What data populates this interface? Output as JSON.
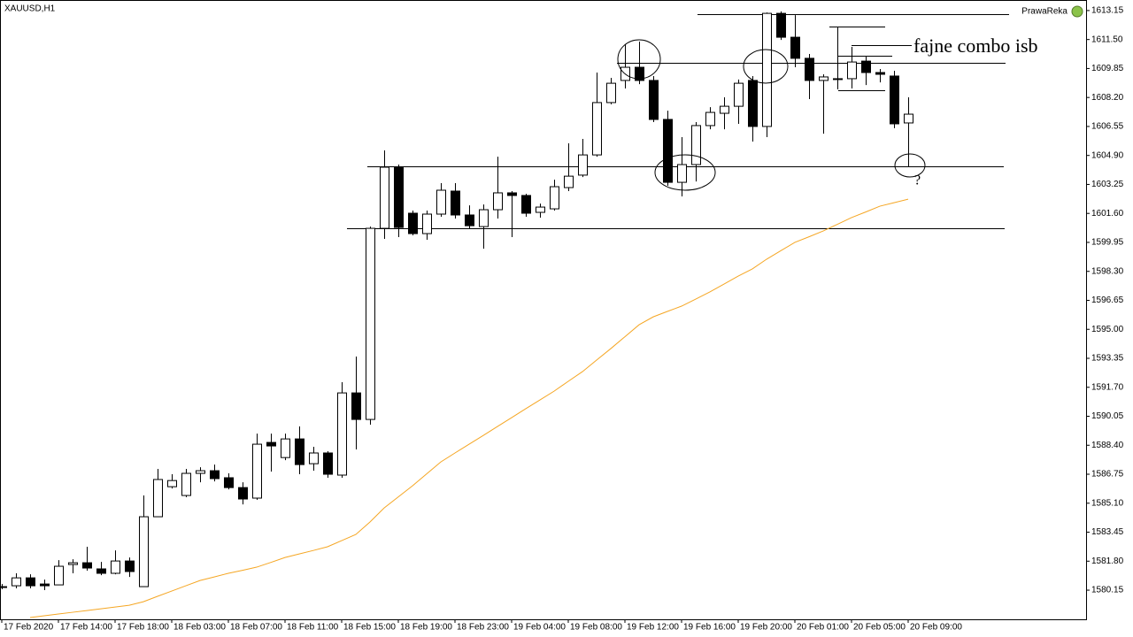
{
  "chart_data": {
    "type": "candlestick",
    "symbol": "XAUUSD,H1",
    "broker": "PrawaReka",
    "categories": [
      "17 Feb 2020",
      null,
      null,
      null,
      "17 Feb 14:00",
      null,
      null,
      null,
      "17 Feb 18:00",
      null,
      null,
      null,
      "18 Feb 03:00",
      null,
      null,
      null,
      "18 Feb 07:00",
      null,
      null,
      null,
      "18 Feb 11:00",
      null,
      null,
      null,
      "18 Feb 15:00",
      null,
      null,
      null,
      "18 Feb 19:00",
      null,
      null,
      null,
      "18 Feb 23:00",
      null,
      null,
      null,
      "19 Feb 04:00",
      null,
      null,
      null,
      "19 Feb 08:00",
      null,
      null,
      null,
      "19 Feb 12:00",
      null,
      null,
      null,
      "19 Feb 16:00",
      null,
      null,
      null,
      "19 Feb 20:00",
      null,
      null,
      null,
      "20 Feb 01:00",
      null,
      null,
      null,
      "20 Feb 05:00",
      null,
      null,
      null,
      "20 Feb 09:00"
    ],
    "open": [
      1580.35,
      1580.4,
      1580.85,
      1580.5,
      1580.45,
      1581.61,
      1581.71,
      1581.36,
      1581.11,
      1581.81,
      1580.35,
      1584.33,
      1586.04,
      1585.54,
      1586.8,
      1586.95,
      1586.55,
      1585.99,
      1585.39,
      1588.56,
      1587.7,
      1588.76,
      1587.35,
      1587.96,
      1586.7,
      1591.38,
      1589.87,
      1600.75,
      1604.23,
      1601.61,
      1600.45,
      1601.56,
      1602.87,
      1601.51,
      1600.85,
      1601.81,
      1602.77,
      1602.62,
      1601.66,
      1601.86,
      1603.07,
      1603.78,
      1604.93,
      1607.91,
      1609.17,
      1609.92,
      1609.17,
      1606.95,
      1603.37,
      1604.38,
      1606.6,
      1607.3,
      1607.7,
      1609.17,
      1606.55,
      1612.99,
      1611.63,
      1610.43,
      1609.17,
      1609.27,
      1609.27,
      1610.27,
      1609.62,
      1609.42,
      1606.75
    ],
    "high": [
      1580.5,
      1581.11,
      1581.05,
      1580.75,
      1581.86,
      1581.91,
      1582.62,
      1581.76,
      1582.41,
      1582.01,
      1585.54,
      1587.05,
      1586.75,
      1587.05,
      1587.15,
      1587.3,
      1586.8,
      1586.29,
      1589.06,
      1589.06,
      1589.06,
      1589.47,
      1588.31,
      1588.06,
      1591.99,
      1593.45,
      1600.85,
      1605.19,
      1604.38,
      1601.76,
      1601.76,
      1603.32,
      1603.32,
      1602.06,
      1602.11,
      1604.83,
      1602.87,
      1602.72,
      1602.16,
      1603.52,
      1605.59,
      1605.84,
      1609.62,
      1609.32,
      1611.23,
      1611.38,
      1609.42,
      1607.45,
      1605.94,
      1606.8,
      1607.65,
      1608.21,
      1609.22,
      1609.42,
      1613.04,
      1613.1,
      1612.89,
      1610.68,
      1609.52,
      1612.24,
      1611.08,
      1610.53,
      1609.82,
      1609.72,
      1608.21
    ],
    "low": [
      1580.2,
      1580.25,
      1580.25,
      1580.15,
      1580.45,
      1581.11,
      1581.26,
      1581.0,
      1581.05,
      1580.9,
      1580.35,
      1584.33,
      1585.94,
      1585.44,
      1586.29,
      1586.34,
      1585.89,
      1585.03,
      1585.29,
      1586.9,
      1587.55,
      1586.75,
      1586.95,
      1586.55,
      1586.55,
      1588.16,
      1589.57,
      1600.15,
      1600.25,
      1600.35,
      1600.1,
      1601.41,
      1601.31,
      1600.75,
      1599.59,
      1601.31,
      1600.25,
      1601.41,
      1601.36,
      1601.76,
      1602.87,
      1603.67,
      1604.83,
      1607.81,
      1608.71,
      1608.96,
      1606.8,
      1603.17,
      1602.57,
      1603.42,
      1606.39,
      1606.39,
      1606.7,
      1605.69,
      1605.94,
      1611.48,
      1609.92,
      1608.11,
      1606.14,
      1608.66,
      1608.71,
      1608.91,
      1609.06,
      1606.45,
      1604.28
    ],
    "close": [
      1580.35,
      1580.85,
      1580.4,
      1580.4,
      1581.51,
      1581.71,
      1581.41,
      1581.11,
      1581.81,
      1581.21,
      1584.33,
      1586.45,
      1586.39,
      1586.8,
      1586.95,
      1586.5,
      1585.99,
      1585.34,
      1588.46,
      1588.36,
      1588.76,
      1587.3,
      1587.96,
      1586.75,
      1591.38,
      1589.87,
      1600.75,
      1604.23,
      1600.8,
      1600.45,
      1601.56,
      1602.92,
      1601.51,
      1600.9,
      1601.81,
      1602.77,
      1602.62,
      1601.61,
      1601.96,
      1603.12,
      1603.72,
      1604.93,
      1607.91,
      1609.01,
      1609.92,
      1609.17,
      1606.95,
      1603.37,
      1604.38,
      1606.6,
      1607.35,
      1607.7,
      1609.01,
      1606.55,
      1612.99,
      1611.63,
      1610.43,
      1609.17,
      1609.37,
      1609.22,
      1610.22,
      1609.62,
      1609.52,
      1606.7,
      1607.25
    ],
    "up_color": "#ffffff",
    "down_color": "#000000",
    "moving_average": {
      "color": "#f5a623",
      "values": [
        null,
        null,
        1578.59,
        1578.69,
        1578.79,
        1578.89,
        1578.99,
        1579.09,
        1579.19,
        1579.29,
        1579.49,
        1579.8,
        1580.1,
        1580.4,
        1580.7,
        1580.9,
        1581.11,
        1581.28,
        1581.46,
        1581.73,
        1582.01,
        1582.21,
        1582.41,
        1582.62,
        1582.97,
        1583.32,
        1584.03,
        1584.83,
        1585.46,
        1586.09,
        1586.77,
        1587.45,
        1587.96,
        1588.46,
        1588.96,
        1589.47,
        1589.97,
        1590.48,
        1590.98,
        1591.48,
        1592.04,
        1592.59,
        1593.25,
        1593.9,
        1594.58,
        1595.26,
        1595.71,
        1596.02,
        1596.32,
        1596.72,
        1597.13,
        1597.58,
        1598.03,
        1598.44,
        1598.99,
        1599.47,
        1599.95,
        1600.27,
        1600.6,
        1600.98,
        1601.36,
        1601.68,
        1602.01,
        1602.21,
        1602.41
      ]
    },
    "levels": [
      1612.94,
      1612.24,
      1611.18,
      1610.58,
      1610.17,
      1608.61,
      1604.28,
      1600.75
    ],
    "annotations": [
      "fajne combo isb",
      "?"
    ],
    "ylim": [
      1578.49,
      1613.75
    ],
    "yticks": [
      {
        "value": 1580.15,
        "label": "1580.15"
      },
      {
        "value": 1581.8,
        "label": "1581.80"
      },
      {
        "value": 1583.45,
        "label": "1583.45"
      },
      {
        "value": 1585.1,
        "label": "1585.10"
      },
      {
        "value": 1586.75,
        "label": "1586.75"
      },
      {
        "value": 1588.4,
        "label": "1588.40"
      },
      {
        "value": 1590.05,
        "label": "1590.05"
      },
      {
        "value": 1591.7,
        "label": "1591.70"
      },
      {
        "value": 1593.35,
        "label": "1593.35"
      },
      {
        "value": 1595,
        "label": "1595.00"
      },
      {
        "value": 1596.65,
        "label": "1596.65"
      },
      {
        "value": 1598.3,
        "label": "1598.30"
      },
      {
        "value": 1599.95,
        "label": "1599.95"
      },
      {
        "value": 1601.6,
        "label": "1601.60"
      },
      {
        "value": 1603.25,
        "label": "1603.25"
      },
      {
        "value": 1604.9,
        "label": "1604.90"
      },
      {
        "value": 1606.55,
        "label": "1606.55"
      },
      {
        "value": 1608.2,
        "label": "1608.20"
      },
      {
        "value": 1609.85,
        "label": "1609.85"
      },
      {
        "value": 1611.5,
        "label": "1611.50"
      },
      {
        "value": 1613.15,
        "label": "1613.15"
      }
    ],
    "grid": false
  }
}
